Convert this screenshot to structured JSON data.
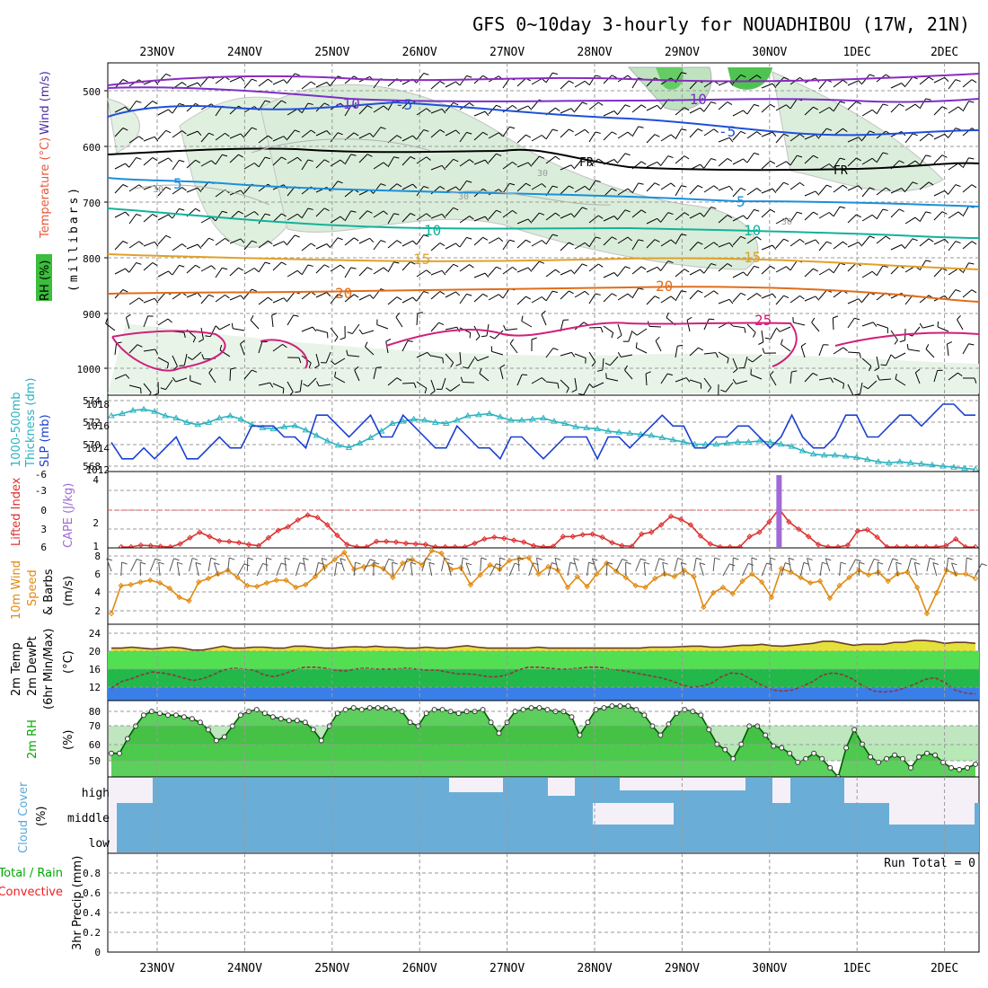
{
  "title": "GFS 0~10day 3-hourly for NOUADHIBOU (17W, 21N)",
  "dates": [
    "23NOV",
    "24NOV",
    "25NOV",
    "26NOV",
    "27NOV",
    "28NOV",
    "29NOV",
    "30NOV",
    "1DEC",
    "2DEC"
  ],
  "colors": {
    "temp": "#e8583a",
    "wind_label": "#4a2da0",
    "rh": "#00aa00",
    "thick": "#2ab3c0",
    "slp": "#1a3fd0",
    "li": "#dd3030",
    "cape": "#a06ad8",
    "wind10": "#e08a10",
    "t2m": "#e2e23a",
    "rh2m": "#00b000",
    "cloud": "#5aa8d8",
    "precip_total": "#00aa00",
    "precip_conv": "#ee2020"
  },
  "panels": {
    "upper": {
      "label_rh": "RH (%)",
      "label_temp": "Temperature (°C)",
      "label_wind": "Wind (m/s)",
      "label_units": "(millibars)",
      "yticks": [
        "500",
        "600",
        "700",
        "800",
        "900",
        "1000"
      ],
      "contour_labels": [
        "-10",
        "-5",
        "5",
        "10",
        "15",
        "20",
        "25",
        "FR",
        "30"
      ]
    },
    "thick": {
      "label_a": "1000-500mb",
      "label_b": "Thickness (dm)",
      "label_c": "SLP (mb)",
      "left_ticks": [
        "574",
        "572",
        "570",
        "568"
      ],
      "right_ticks": [
        "1018",
        "1016",
        "1014",
        "1012"
      ]
    },
    "cape": {
      "label_a": "Lifted Index",
      "label_b": "CAPE (J/kg)",
      "left_ticks": [
        "-6",
        "-3",
        "0",
        "3",
        "6"
      ],
      "right_ticks": [
        "4",
        "2",
        "1"
      ]
    },
    "wind": {
      "label_a": "10m Wind",
      "label_b": "Speed",
      "label_c": "& Barbs",
      "label_d": "(m/s)",
      "yticks": [
        "8",
        "6",
        "4",
        "2"
      ]
    },
    "temp2m": {
      "label_a": "2m Temp",
      "label_b": "2m DewPt",
      "label_c": "(6hr Min/Max)",
      "label_d": "(°C)",
      "yticks": [
        "24",
        "20",
        "16",
        "12"
      ]
    },
    "rh2m": {
      "label_a": "2m RH",
      "label_b": "(%)",
      "yticks": [
        "80",
        "70",
        "60",
        "50"
      ]
    },
    "cloud": {
      "label_a": "Cloud Cover",
      "label_b": "(%)",
      "levels": [
        "high",
        "middle",
        "low"
      ]
    },
    "precip": {
      "label_a": "Total / Rain",
      "label_b": "Convective",
      "label_c": "3hr Precip (mm)",
      "yticks": [
        "0.8",
        "0.6",
        "0.4",
        "0.2",
        "0"
      ],
      "run_total": "Run Total = 0"
    }
  },
  "chart_data": [
    {
      "type": "line",
      "name": "thickness_slp",
      "series": [
        {
          "name": "Thickness",
          "values": [
            572.6,
            572.8,
            573.1,
            573.2,
            573.0,
            572.6,
            572.4,
            572.0,
            571.8,
            572.0,
            572.4,
            572.6,
            572.3,
            571.8,
            571.5,
            571.4,
            571.6,
            571.7,
            571.3,
            570.8,
            570.3,
            569.9,
            569.7,
            570.1,
            570.6,
            571.2,
            571.9,
            572.1,
            572.3,
            572.2,
            572.0,
            571.9,
            572.2,
            572.6,
            572.7,
            572.8,
            572.5,
            572.2,
            572.2,
            572.3,
            572.4,
            572.1,
            571.9,
            571.6,
            571.5,
            571.4,
            571.2,
            571.1,
            571.0,
            570.9,
            570.8,
            570.6,
            570.4,
            570.2,
            570.0,
            570.0,
            570.0,
            570.1,
            570.2,
            570.2,
            570.3,
            570.2,
            570.0,
            569.8,
            569.4,
            569.1,
            569.0,
            569.0,
            568.9,
            568.8,
            568.6,
            568.4,
            568.3,
            568.4,
            568.3,
            568.2,
            568.1,
            568.0,
            567.9,
            567.8,
            567.7
          ]
        },
        {
          "name": "SLP",
          "values": [
            1014.5,
            1013,
            1013,
            1014,
            1013,
            1014,
            1015,
            1013,
            1013,
            1014,
            1015,
            1014,
            1014,
            1016,
            1016,
            1016,
            1015,
            1015,
            1014,
            1017,
            1017,
            1016,
            1015,
            1016,
            1017,
            1015,
            1015,
            1017,
            1016,
            1015,
            1014,
            1014,
            1016,
            1015,
            1014,
            1014,
            1013,
            1015,
            1015,
            1014,
            1013,
            1014,
            1015,
            1015,
            1015,
            1013,
            1015,
            1015,
            1014,
            1015,
            1016,
            1017,
            1016,
            1016,
            1014,
            1014,
            1015,
            1015,
            1016,
            1016,
            1015,
            1014,
            1015,
            1017,
            1015,
            1014,
            1014,
            1015,
            1017,
            1017,
            1015,
            1015,
            1016,
            1017,
            1017,
            1016,
            1017,
            1018,
            1018,
            1017,
            1017
          ]
        }
      ],
      "left_ylim": [
        568,
        574
      ],
      "right_ylim": [
        1012,
        1018
      ]
    },
    {
      "type": "line",
      "name": "lifted_index_cape",
      "series": [
        {
          "name": "Lifted Index",
          "values": [
            null,
            6,
            6,
            5.7,
            5.8,
            5.9,
            6,
            5.5,
            4.5,
            3.6,
            4.3,
            5,
            5.1,
            5.3,
            5.6,
            5.8,
            4.5,
            3.3,
            2.7,
            1.6,
            0.8,
            1.2,
            2.4,
            4.1,
            5.6,
            6,
            6,
            5.1,
            5.1,
            5.2,
            5.4,
            5.5,
            5.6,
            6,
            6,
            6,
            6,
            5.4,
            4.7,
            4.4,
            4.6,
            4.9,
            5.2,
            5.8,
            6,
            5.9,
            4.3,
            4.3,
            4,
            3.9,
            4.4,
            5.3,
            5.8,
            5.9,
            3.9,
            3.6,
            2.4,
            1.0,
            1.5,
            2.4,
            4.2,
            5.5,
            6,
            6,
            6,
            4.3,
            3.6,
            1.9,
            -0.2,
            1.9,
            3.1,
            4.3,
            5.6,
            6,
            6,
            5.7,
            3.4,
            3.2,
            4.4,
            6,
            6,
            6,
            6,
            6,
            6,
            5.8,
            4.7,
            6,
            6
          ]
        },
        {
          "name": "CAPE",
          "bars": [
            {
              "x_index": 68,
              "value": 4.2
            }
          ]
        }
      ],
      "left_ylim": [
        6,
        -6
      ],
      "right_ylim": [
        1,
        4
      ],
      "reference_line": 0
    },
    {
      "type": "line",
      "name": "wind_10m",
      "series": [
        {
          "name": "Speed",
          "values": [
            1.2,
            4.3,
            4.4,
            4.7,
            4.9,
            4.6,
            4.0,
            3.0,
            2.6,
            4.7,
            5.1,
            5.6,
            6.0,
            5.2,
            4.3,
            4.2,
            4.6,
            4.9,
            4.9,
            4.1,
            4.4,
            5.3,
            6.4,
            7.2,
            8.0,
            6.1,
            6.4,
            6.6,
            6.2,
            5.2,
            6.8,
            7.2,
            6.6,
            8.2,
            7.9,
            6.1,
            6.3,
            4.4,
            5.5,
            6.6,
            6.1,
            7.1,
            7.3,
            7.4,
            5.6,
            6.4,
            6.0,
            4.1,
            5.3,
            4.2,
            5.6,
            6.8,
            5.9,
            5.2,
            4.3,
            4.1,
            5.1,
            5.6,
            5.3,
            6.0,
            5.3,
            1.9,
            3.5,
            4.1,
            3.4,
            4.8,
            5.6,
            4.7,
            3.0,
            6.2,
            5.8,
            5.2,
            4.6,
            4.8,
            2.9,
            4.3,
            5.2,
            6.0,
            5.5,
            5.8,
            4.8,
            5.6,
            5.8,
            4.1,
            1.2,
            3.5,
            6.0,
            5.6,
            5.6,
            5.1
          ]
        }
      ],
      "ylim": [
        0,
        8.5
      ]
    },
    {
      "type": "area",
      "name": "temp_2m",
      "series": [
        {
          "name": "2m Temp",
          "values": [
            21,
            21,
            21.2,
            21,
            20.8,
            21,
            21.2,
            21,
            20.6,
            20.6,
            21,
            21.4,
            21,
            21,
            21.2,
            21.2,
            21,
            21,
            21.4,
            21.4,
            21.2,
            21,
            21,
            21.2,
            21.3,
            21.2,
            21.4,
            21.2,
            21.2,
            21,
            21,
            21.2,
            21,
            21,
            21.3,
            21.5,
            21.2,
            21,
            21,
            21,
            21,
            21,
            21.2,
            21,
            21,
            21,
            21,
            21,
            21,
            21,
            21,
            21,
            21,
            21.2,
            21.2,
            21.2,
            21.3,
            21.4,
            21.4,
            21.2,
            21.2,
            21.4,
            21.6,
            21.6,
            21.8,
            21.5,
            21.4,
            21.6,
            21.8,
            22.0,
            22.4,
            22.4,
            22.0,
            21.6,
            21.8,
            21.8,
            21.8,
            22.2,
            22.2,
            22.6,
            22.6,
            22.4,
            22.0,
            22.2,
            22.2,
            22.0
          ]
        },
        {
          "name": "2m DewPt",
          "values": [
            12.6,
            14,
            14.6,
            15.4,
            16,
            15.8,
            15.4,
            14.8,
            14.2,
            14.6,
            15.4,
            16.4,
            16.8,
            16.6,
            16.4,
            15.4,
            15,
            15.6,
            16.4,
            17,
            17,
            16.8,
            16.4,
            16.2,
            16.6,
            16.8,
            16.6,
            16.6,
            16.6,
            16.8,
            16.6,
            16.4,
            16.4,
            16,
            15.6,
            15.6,
            15.4,
            15,
            15,
            15.4,
            16.4,
            17,
            17,
            16.8,
            16.6,
            16.6,
            16.8,
            17,
            17,
            16.6,
            16.4,
            16,
            15.6,
            15.2,
            14.8,
            14.2,
            13.4,
            12.8,
            13,
            13.6,
            15,
            15.8,
            15.6,
            14.4,
            13.2,
            12.2,
            12,
            12.2,
            13,
            14,
            15.4,
            15.8,
            15.4,
            14.4,
            13,
            12,
            11.8,
            12,
            12.6,
            13.4,
            14.4,
            14.8,
            13.8,
            12.2,
            11.6,
            11.4
          ]
        }
      ],
      "ylim": [
        10,
        26
      ]
    },
    {
      "type": "area",
      "name": "rh_2m",
      "series": [
        {
          "name": "2m RH",
          "values": [
            55,
            55,
            63,
            70,
            76,
            78,
            77,
            76,
            76,
            75,
            74,
            72,
            68,
            62,
            64,
            70,
            76,
            78,
            79,
            77,
            75,
            74,
            73,
            73,
            72,
            68,
            62,
            70,
            77,
            79,
            80,
            79,
            80,
            80,
            80,
            79,
            78,
            72,
            70,
            77,
            79,
            79,
            78,
            77,
            78,
            78,
            79,
            72,
            66,
            72,
            78,
            79,
            80,
            80,
            79,
            78,
            78,
            75,
            65,
            72,
            79,
            80,
            81,
            81,
            81,
            79,
            76,
            70,
            65,
            71,
            77,
            79,
            78,
            76,
            68,
            60,
            57,
            52,
            60,
            70,
            70,
            65,
            59,
            58,
            55,
            50,
            52,
            55,
            52,
            47,
            42,
            58,
            68,
            60,
            53,
            50,
            52,
            54,
            52,
            47,
            53,
            55,
            54,
            50,
            47,
            46,
            47,
            49
          ]
        }
      ],
      "ylim": [
        42,
        84
      ]
    },
    {
      "type": "heatmap",
      "name": "cloud_cover",
      "levels": [
        "high",
        "middle",
        "low"
      ]
    },
    {
      "type": "bar",
      "name": "precip_3hr",
      "series": [
        {
          "name": "Total",
          "values": []
        },
        {
          "name": "Convective",
          "values": []
        }
      ],
      "ylim": [
        0,
        0.9
      ]
    }
  ]
}
